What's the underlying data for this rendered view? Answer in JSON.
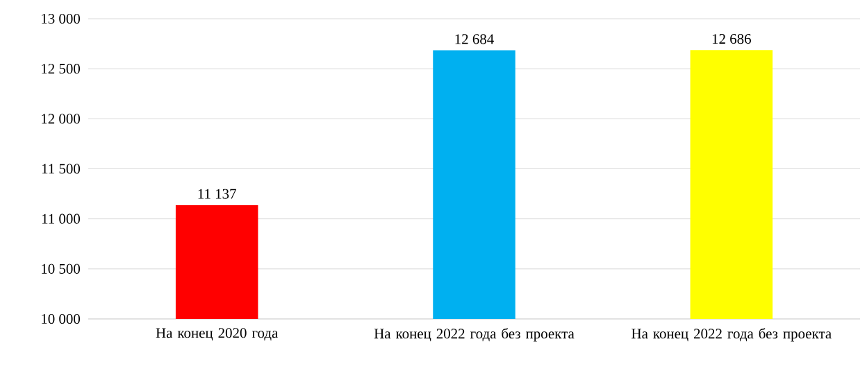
{
  "chart_data": {
    "type": "bar",
    "categories": [
      "На конец 2020 года",
      "На конец 2022 года без проекта",
      "На конец 2022 года без проекта"
    ],
    "values": [
      11137,
      12684,
      12686
    ],
    "colors": [
      "#ff0000",
      "#00b0f0",
      "#ffff00"
    ],
    "value_labels": [
      "11 137",
      "12 684",
      "12 686"
    ],
    "ylim": [
      10000,
      13000
    ],
    "yticks": [
      {
        "value": 10000,
        "label": "10 000"
      },
      {
        "value": 10500,
        "label": "10 500"
      },
      {
        "value": 11000,
        "label": "11 000"
      },
      {
        "value": 11500,
        "label": "11 500"
      },
      {
        "value": 12000,
        "label": "12 000"
      },
      {
        "value": 12500,
        "label": "12 500"
      },
      {
        "value": 13000,
        "label": "13 000"
      }
    ],
    "grid": "y"
  }
}
